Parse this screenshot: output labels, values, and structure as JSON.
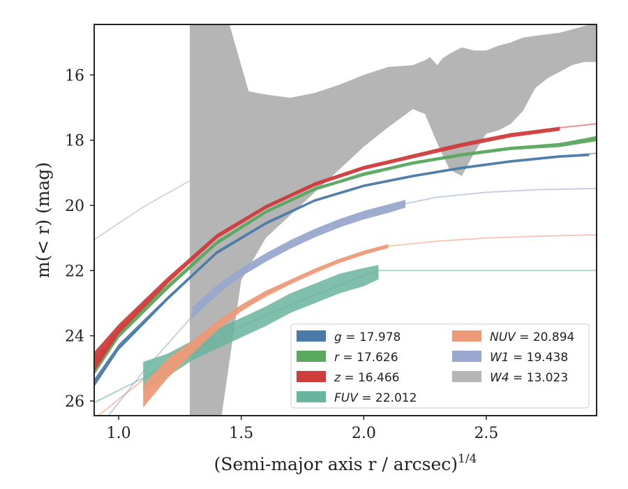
{
  "chart_data": {
    "type": "line",
    "xlabel": "(Semi-major axis r / arcsec)",
    "xlabel_exponent": "1/4",
    "ylabel": "m(< r) (mag)",
    "xlim": [
      0.9,
      2.95
    ],
    "ylim": [
      26.45,
      14.45
    ],
    "y_inverted": true,
    "x_ticks": [
      1.0,
      1.5,
      2.0,
      2.5
    ],
    "x_tick_labels": [
      "1.0",
      "1.5",
      "2.0",
      "2.5"
    ],
    "y_ticks": [
      16,
      18,
      20,
      22,
      24,
      26
    ],
    "y_tick_labels": [
      "16",
      "18",
      "20",
      "22",
      "24",
      "26"
    ],
    "grid": false,
    "legend_position": "lower-right",
    "series": [
      {
        "name": "g = 17.978",
        "var": "g",
        "value": "17.978",
        "color": "#4c7aa8",
        "model_x": [
          0.9,
          1.0,
          1.2,
          1.4,
          1.6,
          1.8,
          2.0,
          2.2,
          2.4,
          2.6,
          2.8,
          2.95
        ],
        "model_y": [
          25.5,
          24.4,
          22.85,
          21.45,
          20.55,
          19.85,
          19.4,
          19.1,
          18.85,
          18.65,
          18.5,
          18.4
        ],
        "band_x": [
          0.9,
          1.0,
          1.2,
          1.4,
          1.6,
          1.8,
          2.0,
          2.2,
          2.4,
          2.6,
          2.8,
          2.92
        ],
        "band_y": [
          25.45,
          24.35,
          22.85,
          21.45,
          20.55,
          19.85,
          19.4,
          19.1,
          18.85,
          18.65,
          18.5,
          18.45
        ],
        "band_halfwidth": [
          0.12,
          0.09,
          0.06,
          0.05,
          0.045,
          0.04,
          0.04,
          0.04,
          0.04,
          0.04,
          0.04,
          0.04
        ]
      },
      {
        "name": "r = 17.626",
        "var": "r",
        "value": "17.626",
        "color": "#5ba85f",
        "model_x": [
          0.9,
          1.0,
          1.2,
          1.4,
          1.6,
          1.8,
          2.0,
          2.2,
          2.4,
          2.6,
          2.8,
          2.95
        ],
        "model_y": [
          25.0,
          24.0,
          22.55,
          21.15,
          20.2,
          19.5,
          19.0,
          18.7,
          18.45,
          18.25,
          18.1,
          17.95
        ],
        "band_x": [
          0.9,
          1.0,
          1.2,
          1.4,
          1.6,
          1.8,
          2.0,
          2.2,
          2.4,
          2.6,
          2.8,
          2.95
        ],
        "band_y": [
          25.0,
          23.95,
          22.5,
          21.15,
          20.2,
          19.5,
          19.05,
          18.7,
          18.45,
          18.25,
          18.15,
          17.95
        ],
        "band_halfwidth": [
          0.2,
          0.12,
          0.08,
          0.06,
          0.05,
          0.05,
          0.05,
          0.05,
          0.05,
          0.05,
          0.06,
          0.08
        ]
      },
      {
        "name": "z = 16.466",
        "var": "z",
        "value": "16.466",
        "color": "#cf3c3c",
        "model_x": [
          0.9,
          1.0,
          1.2,
          1.4,
          1.6,
          1.8,
          2.0,
          2.2,
          2.4,
          2.6,
          2.8,
          2.95
        ],
        "model_y": [
          24.8,
          23.8,
          22.35,
          21.0,
          20.05,
          19.35,
          18.85,
          18.45,
          18.1,
          17.8,
          17.62,
          17.5
        ],
        "band_x": [
          0.9,
          1.0,
          1.2,
          1.4,
          1.6,
          1.8,
          2.0,
          2.2,
          2.4,
          2.6,
          2.8
        ],
        "band_y": [
          24.8,
          23.8,
          22.3,
          20.95,
          20.05,
          19.35,
          18.85,
          18.5,
          18.15,
          17.85,
          17.65
        ],
        "band_halfwidth": [
          0.3,
          0.15,
          0.1,
          0.07,
          0.06,
          0.06,
          0.06,
          0.06,
          0.06,
          0.06,
          0.06
        ]
      },
      {
        "name": "FUV = 22.012",
        "var": "FUV",
        "value": "22.012",
        "color": "#69b49c",
        "model_x": [
          0.9,
          1.1,
          1.3,
          1.5,
          1.7,
          1.9,
          2.0,
          2.06,
          2.2,
          2.5,
          2.95
        ],
        "model_y": [
          26.05,
          25.3,
          24.45,
          23.7,
          23.05,
          22.45,
          22.15,
          22.0,
          22.0,
          22.0,
          22.0
        ],
        "band_x": [
          1.1,
          1.2,
          1.3,
          1.4,
          1.5,
          1.6,
          1.7,
          1.8,
          1.9,
          2.0,
          2.06
        ],
        "band_y": [
          25.25,
          24.9,
          24.45,
          24.1,
          23.75,
          23.4,
          23.0,
          22.7,
          22.4,
          22.2,
          22.05
        ],
        "band_halfwidth": [
          0.45,
          0.35,
          0.3,
          0.3,
          0.3,
          0.3,
          0.3,
          0.3,
          0.3,
          0.28,
          0.22
        ]
      },
      {
        "name": "NUV = 20.894",
        "var": "NUV",
        "value": "20.894",
        "color": "#ed9a78",
        "model_x": [
          0.9,
          1.1,
          1.3,
          1.5,
          1.7,
          1.9,
          2.1,
          2.3,
          2.5,
          2.7,
          2.95
        ],
        "model_y": [
          26.55,
          25.35,
          24.2,
          23.2,
          22.4,
          21.75,
          21.25,
          21.1,
          21.0,
          20.95,
          20.9
        ],
        "band_x": [
          1.1,
          1.2,
          1.3,
          1.4,
          1.5,
          1.6,
          1.7,
          1.8,
          1.9,
          2.0,
          2.1
        ],
        "band_y": [
          25.85,
          25.0,
          24.35,
          23.7,
          23.15,
          22.7,
          22.35,
          22.0,
          21.7,
          21.45,
          21.25
        ],
        "band_halfwidth": [
          0.35,
          0.3,
          0.2,
          0.14,
          0.1,
          0.08,
          0.07,
          0.06,
          0.06,
          0.06,
          0.06
        ]
      },
      {
        "name": "W1 = 19.438",
        "var": "W1",
        "value": "19.438",
        "color": "#99a8cc",
        "model_x": [
          0.9,
          1.1,
          1.3,
          1.5,
          1.7,
          1.9,
          2.1,
          2.3,
          2.5,
          2.7,
          2.95
        ],
        "model_y": [
          27.0,
          25.1,
          23.4,
          22.1,
          21.15,
          20.5,
          20.05,
          19.75,
          19.6,
          19.52,
          19.48
        ],
        "band_x": [
          1.3,
          1.4,
          1.5,
          1.6,
          1.7,
          1.8,
          1.9,
          2.0,
          2.1,
          2.17
        ],
        "band_y": [
          23.3,
          22.6,
          22.05,
          21.6,
          21.2,
          20.85,
          20.55,
          20.3,
          20.1,
          19.95
        ],
        "band_halfwidth": [
          0.18,
          0.15,
          0.13,
          0.13,
          0.13,
          0.13,
          0.13,
          0.13,
          0.13,
          0.12
        ]
      },
      {
        "name": "W4 = 13.023",
        "var": "W4",
        "value": "13.023",
        "color": "#b5b5b5",
        "model_x": [
          0.9,
          1.1,
          1.3,
          1.5,
          1.7,
          1.9,
          2.1,
          2.3,
          2.5,
          2.7,
          2.95
        ],
        "model_y": [
          21.05,
          20.05,
          19.2,
          18.45,
          17.8,
          17.2,
          16.7,
          16.2,
          15.75,
          15.35,
          14.9
        ],
        "band_upper_x": [
          1.29,
          1.45,
          1.53,
          1.6,
          1.7,
          1.8,
          1.9,
          2.0,
          2.1,
          2.2,
          2.25,
          2.27,
          2.3,
          2.32,
          2.35,
          2.4,
          2.45,
          2.5,
          2.55,
          2.6,
          2.65,
          2.7,
          2.75,
          2.8,
          2.85,
          2.9,
          2.95
        ],
        "band_upper_y": [
          14.4,
          14.4,
          16.5,
          16.6,
          16.7,
          16.55,
          16.3,
          16.0,
          15.75,
          15.7,
          15.55,
          15.45,
          15.7,
          15.5,
          15.35,
          15.15,
          15.25,
          15.25,
          15.1,
          15.0,
          14.85,
          14.8,
          14.75,
          14.7,
          14.6,
          14.5,
          14.4
        ],
        "band_lower_x": [
          1.29,
          1.42,
          1.5,
          1.6,
          1.7,
          1.8,
          1.9,
          2.0,
          2.1,
          2.2,
          2.25,
          2.3,
          2.35,
          2.4,
          2.45,
          2.5,
          2.55,
          2.6,
          2.65,
          2.7,
          2.75,
          2.8,
          2.85,
          2.9,
          2.95
        ],
        "band_lower_y": [
          26.45,
          26.45,
          22.3,
          21.0,
          20.3,
          19.6,
          18.9,
          18.2,
          17.6,
          17.05,
          17.2,
          18.1,
          18.9,
          19.1,
          18.4,
          17.8,
          17.7,
          17.5,
          17.1,
          16.4,
          16.1,
          15.9,
          15.7,
          15.6,
          15.6
        ]
      }
    ]
  }
}
